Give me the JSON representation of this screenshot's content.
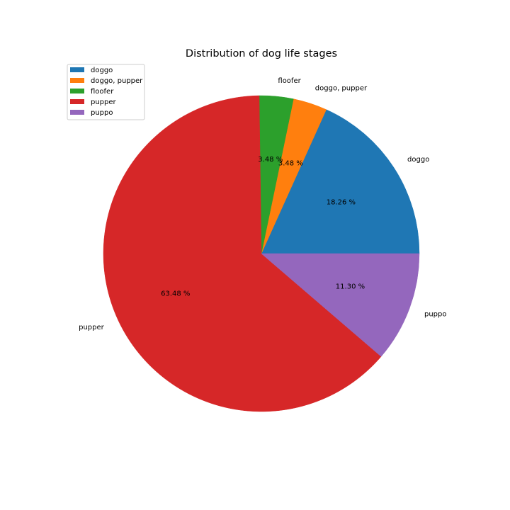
{
  "chart_data": {
    "type": "pie",
    "title": "Distribution of dog life stages",
    "categories": [
      "doggo",
      "doggo, pupper",
      "floofer",
      "pupper",
      "puppo"
    ],
    "values": [
      18.26,
      3.48,
      3.48,
      63.48,
      11.3
    ],
    "value_labels": [
      "18.26 %",
      "3.48 %",
      "3.48 %",
      "63.48 %",
      "11.30 %"
    ],
    "colors": [
      "#1f77b4",
      "#ff7f0e",
      "#2ca02c",
      "#d62728",
      "#9467bd"
    ],
    "start_angle_deg": 0,
    "direction": "counterclockwise",
    "legend": {
      "placement": "top-left",
      "entries": [
        "doggo",
        "doggo, pupper",
        "floofer",
        "pupper",
        "puppo"
      ]
    }
  }
}
